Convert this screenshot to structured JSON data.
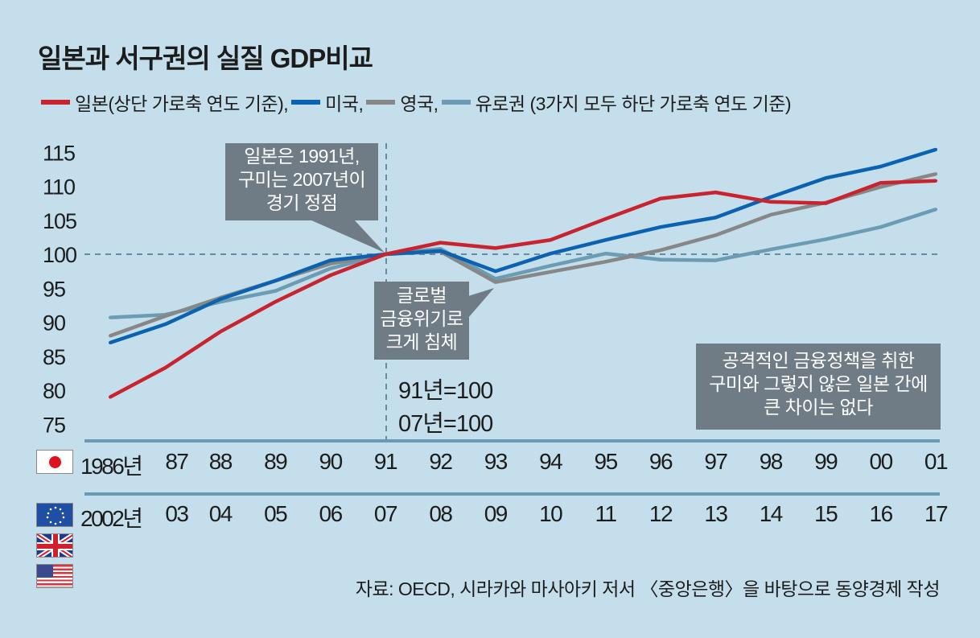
{
  "title": "일본과 서구권의 실질 GDP비교",
  "legend": [
    {
      "label": "일본(상단 가로축 연도 기준),",
      "color": "#c8232e"
    },
    {
      "label": "미국,",
      "color": "#0b62b1"
    },
    {
      "label": "영국,",
      "color": "#878787"
    },
    {
      "label": "유로권 (3가지 모두 하단 가로축 연도 기준)",
      "color": "#6b9cb3"
    }
  ],
  "annotations": {
    "peak": [
      "일본은 1991년,",
      "구미는 2007년이",
      "경기 정점"
    ],
    "crisis": [
      "글로벌",
      "금융위기로",
      "크게 침체"
    ],
    "conclusion": [
      "공격적인 금융정책을 취한",
      "구미와 그렇지 않은 일본 간에",
      "큰 차이는 없다"
    ],
    "base1": "91년=100",
    "base2": "07년=100"
  },
  "flags": {
    "top": "japan-flag",
    "bottom": [
      "eu-flag",
      "uk-flag",
      "us-flag"
    ]
  },
  "source": "자료: OECD, 시라카와 마사아키 저서 〈중앙은행〉을 바탕으로 동양경제 작성",
  "chart_data": {
    "type": "line",
    "title": "일본과 서구권의 실질 GDP비교",
    "ylim": [
      75,
      115
    ],
    "yticks": [
      "115",
      "110",
      "105",
      "100",
      "95",
      "90",
      "85",
      "80",
      "75"
    ],
    "reference_line": 100,
    "x_top_labels": [
      "1986년",
      "87",
      "88",
      "89",
      "90",
      "91",
      "92",
      "93",
      "94",
      "95",
      "96",
      "97",
      "98",
      "99",
      "00",
      "01"
    ],
    "x_bottom_labels": [
      "2002년",
      "03",
      "04",
      "05",
      "06",
      "07",
      "08",
      "09",
      "10",
      "11",
      "12",
      "13",
      "14",
      "15",
      "16",
      "17"
    ],
    "series": [
      {
        "name": "일본",
        "color": "#c8232e",
        "values": [
          79.0,
          83.3,
          88.6,
          93.0,
          96.9,
          100,
          101.7,
          100.9,
          102.1,
          105.2,
          108.2,
          109.1,
          107.7,
          107.5,
          110.5,
          110.8
        ]
      },
      {
        "name": "미국",
        "color": "#0b62b1",
        "values": [
          87.0,
          89.7,
          93.4,
          96.1,
          99.1,
          100,
          100.5,
          97.5,
          100.1,
          102.1,
          104.0,
          105.4,
          108.4,
          111.2,
          112.9,
          115.4
        ]
      },
      {
        "name": "영국",
        "color": "#878787",
        "values": [
          88.0,
          90.9,
          93.6,
          96.1,
          98.6,
          100,
          100.4,
          95.9,
          97.4,
          98.9,
          100.6,
          102.8,
          105.8,
          107.6,
          109.9,
          111.8
        ]
      },
      {
        "name": "유로권",
        "color": "#6b9cb3",
        "values": [
          90.7,
          91.1,
          93.0,
          94.6,
          97.9,
          100,
          100.8,
          96.4,
          98.3,
          100.1,
          99.2,
          99.1,
          100.7,
          102.2,
          104.0,
          106.6
        ]
      }
    ]
  }
}
